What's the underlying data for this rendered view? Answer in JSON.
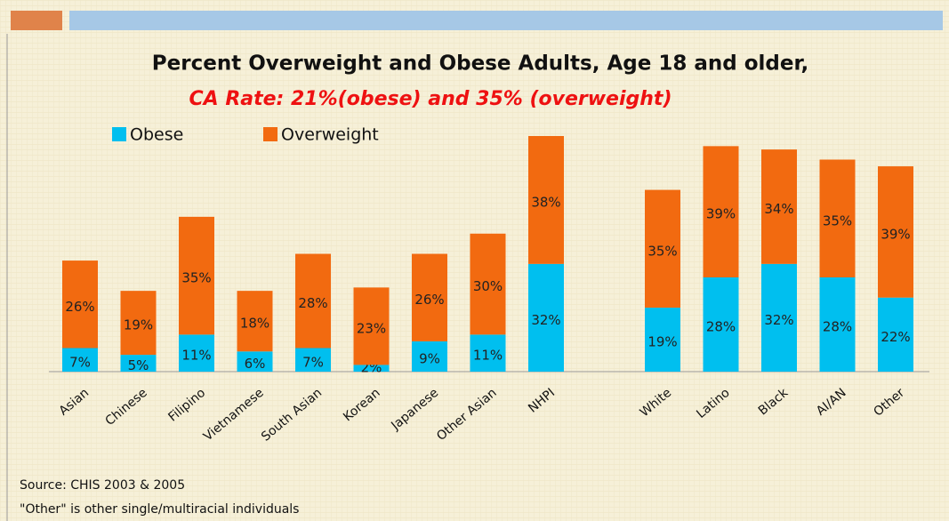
{
  "chart_data": {
    "type": "stacked_bar",
    "title": "Percent Overweight and Obese Adults, Age 18 and older,",
    "subtitle": "CA Rate:  21%(obese) and 35% (overweight)",
    "categories": [
      "Asian",
      "Chinese",
      "Filipino",
      "Vietnamese",
      "South Asian",
      "Korean",
      "Japanese",
      "Other Asian",
      "NHPI",
      null,
      "White",
      "Latino",
      "Black",
      "AI/AN",
      "Other"
    ],
    "series": [
      {
        "name": "Obese",
        "color": "#00bfef",
        "values": [
          7,
          5,
          11,
          6,
          7,
          2,
          9,
          11,
          32,
          null,
          19,
          28,
          32,
          28,
          22
        ],
        "value_labels": [
          "7%",
          "5%",
          "11%",
          "6%",
          "7%",
          "2%",
          "9%",
          "11%",
          "32%",
          null,
          "19%",
          "28%",
          "32%",
          "28%",
          "22%"
        ]
      },
      {
        "name": "Overweight",
        "color": "#f26a10",
        "values": [
          26,
          19,
          35,
          18,
          28,
          23,
          26,
          30,
          38,
          null,
          35,
          39,
          34,
          35,
          39
        ],
        "value_labels": [
          "26%",
          "19%",
          "35%",
          "18%",
          "28%",
          "23%",
          "26%",
          "30%",
          "38%",
          null,
          "35%",
          "39%",
          "34%",
          "35%",
          "39%"
        ]
      }
    ],
    "notes": [
      "Source:  CHIS 2003 & 2005",
      "\"Other\" is other single/multiracial individuals"
    ]
  }
}
